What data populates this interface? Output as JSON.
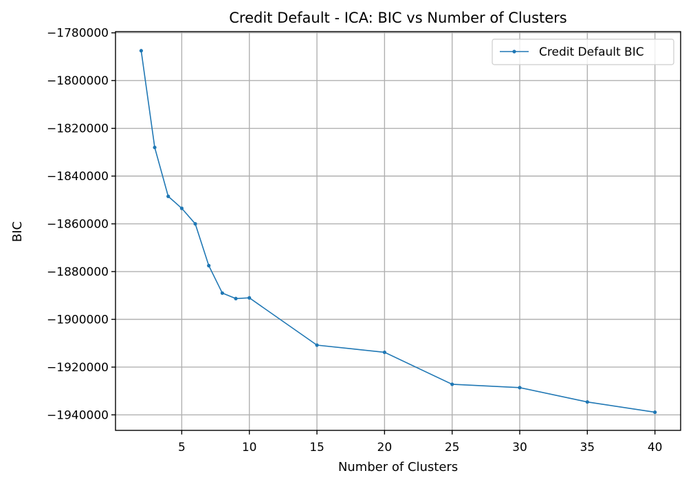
{
  "chart_data": {
    "type": "line",
    "title": "Credit Default - ICA: BIC vs Number of Clusters",
    "xlabel": "Number of Clusters",
    "ylabel": "BIC",
    "xlim": [
      0.1,
      41.9
    ],
    "ylim": [
      -1946500,
      -1779500
    ],
    "xticks": [
      5,
      10,
      15,
      20,
      25,
      30,
      35,
      40
    ],
    "yticks": [
      -1780000,
      -1800000,
      -1820000,
      -1840000,
      -1860000,
      -1880000,
      -1900000,
      -1920000,
      -1940000
    ],
    "xtick_labels": [
      "5",
      "10",
      "15",
      "20",
      "25",
      "30",
      "35",
      "40"
    ],
    "ytick_labels": [
      "−1780000",
      "−1800000",
      "−1820000",
      "−1840000",
      "−1860000",
      "−1880000",
      "−1900000",
      "−1920000",
      "−1940000"
    ],
    "grid": true,
    "legend_position": "top-right",
    "series": [
      {
        "name": "Credit Default BIC",
        "color": "#1f77b4",
        "marker": "circle",
        "x": [
          2,
          3,
          4,
          5,
          6,
          7,
          8,
          9,
          10,
          15,
          20,
          25,
          30,
          35,
          40
        ],
        "y": [
          -1787500,
          -1828000,
          -1848500,
          -1853500,
          -1860000,
          -1877500,
          -1889000,
          -1891300,
          -1891000,
          -1910800,
          -1913800,
          -1927200,
          -1928600,
          -1934600,
          -1938900
        ]
      }
    ]
  }
}
